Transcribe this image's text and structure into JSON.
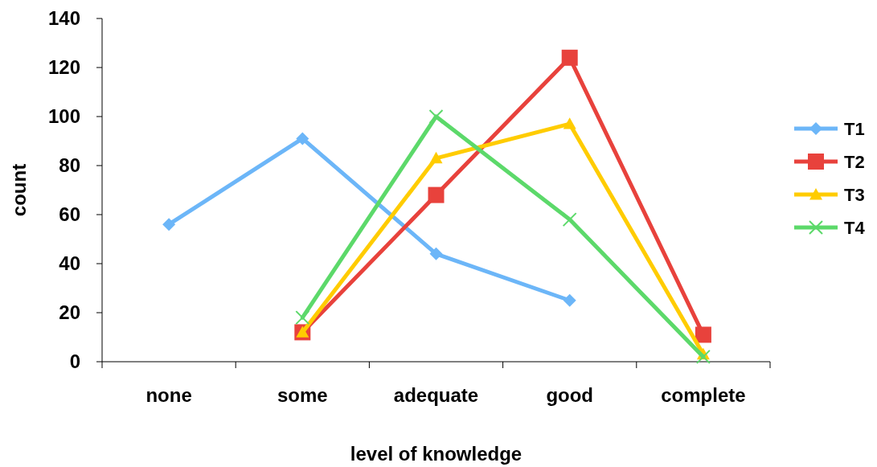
{
  "chart_data": {
    "type": "line",
    "xlabel": "level of knowledge",
    "ylabel": "count",
    "categories": [
      "none",
      "some",
      "adequate",
      "good",
      "complete"
    ],
    "ylim": [
      0,
      140
    ],
    "yticks": [
      0,
      20,
      40,
      60,
      80,
      100,
      120,
      140
    ],
    "grid": false,
    "legend": "right",
    "series": [
      {
        "name": "T1",
        "color": "#6cb6f8",
        "marker": "diamond",
        "values": [
          56,
          91,
          44,
          25,
          null
        ]
      },
      {
        "name": "T2",
        "color": "#e8423c",
        "marker": "square",
        "values": [
          null,
          12,
          68,
          124,
          11
        ]
      },
      {
        "name": "T3",
        "color": "#ffcc00",
        "marker": "triangle",
        "values": [
          null,
          12,
          83,
          97,
          3
        ]
      },
      {
        "name": "T4",
        "color": "#5cd96a",
        "marker": "cross",
        "values": [
          null,
          18,
          100,
          58,
          2
        ]
      }
    ]
  }
}
